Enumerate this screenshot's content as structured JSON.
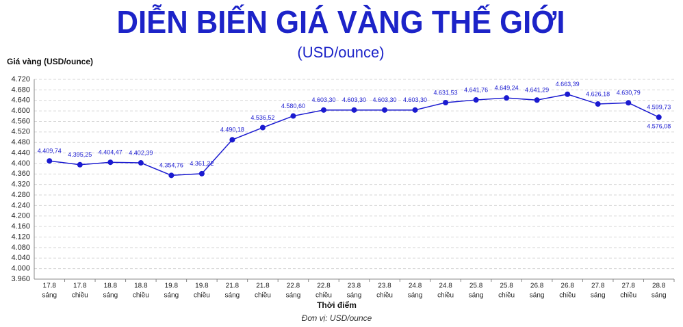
{
  "chart_data": {
    "type": "line",
    "title": "DIỄN BIẾN GIÁ VÀNG THẾ GIỚI",
    "subtitle": "(USD/ounce)",
    "y_label": "Giá vàng (USD/ounce)",
    "x_label": "Thời điểm",
    "note": "Đơn vị: USD/ounce",
    "categories": [
      [
        "17.8",
        "sáng"
      ],
      [
        "17.8",
        "chiều"
      ],
      [
        "18.8",
        "sáng"
      ],
      [
        "18.8",
        "chiều"
      ],
      [
        "19.8",
        "sáng"
      ],
      [
        "19.8",
        "chiều"
      ],
      [
        "21.8",
        "sáng"
      ],
      [
        "21.8",
        "chiều"
      ],
      [
        "22.8",
        "sáng"
      ],
      [
        "22.8",
        "chiều"
      ],
      [
        "23.8",
        "sáng"
      ],
      [
        "23.8",
        "chiều"
      ],
      [
        "24.8",
        "sáng"
      ],
      [
        "24.8",
        "chiều"
      ],
      [
        "25.8",
        "sáng"
      ],
      [
        "25.8",
        "chiều"
      ],
      [
        "26.8",
        "sáng"
      ],
      [
        "26.8",
        "chiều"
      ],
      [
        "27.8",
        "sáng"
      ],
      [
        "27.8",
        "chiều"
      ],
      [
        "28.8",
        "sáng"
      ]
    ],
    "values": [
      4409.74,
      4395.25,
      4404.47,
      4402.39,
      4354.76,
      4361.22,
      4490.18,
      4536.52,
      4580.6,
      4603.3,
      4603.3,
      4603.3,
      4603.3,
      4631.53,
      4641.76,
      4649.24,
      4641.29,
      4663.39,
      4626.18,
      4630.79,
      4576.08
    ],
    "value_labels": [
      "4.409,74",
      "4.395,25",
      "4.404,47",
      "4.402,39",
      "4.354,76",
      "4.361,22",
      "4.490,18",
      "4.536,52",
      "4.580,60",
      "4.603,30",
      "4.603,30",
      "4.603,30",
      "4.603,30",
      "4.631,53",
      "4.641,76",
      "4.649,24",
      "4.641,29",
      "4.663,39",
      "4.626,18",
      "4.630,79",
      "4.576,08"
    ],
    "annotation": "4.599,73",
    "color": "#1a1ad0",
    "ylim": [
      3960,
      4720
    ],
    "yticks": [
      {
        "value": 3960,
        "label": "3.960"
      },
      {
        "value": 4000,
        "label": "4.000"
      },
      {
        "value": 4040,
        "label": "4.040"
      },
      {
        "value": 4080,
        "label": "4.080"
      },
      {
        "value": 4120,
        "label": "4.120"
      },
      {
        "value": 4160,
        "label": "4.160"
      },
      {
        "value": 4200,
        "label": "4.200"
      },
      {
        "value": 4240,
        "label": "4.240"
      },
      {
        "value": 4280,
        "label": "4.280"
      },
      {
        "value": 4320,
        "label": "4.320"
      },
      {
        "value": 4360,
        "label": "4.360"
      },
      {
        "value": 4400,
        "label": "4.400"
      },
      {
        "value": 4440,
        "label": "4.440"
      },
      {
        "value": 4480,
        "label": "4.480"
      },
      {
        "value": 4520,
        "label": "4.520"
      },
      {
        "value": 4560,
        "label": "4.560"
      },
      {
        "value": 4600,
        "label": "4.600"
      },
      {
        "value": 4640,
        "label": "4.640"
      },
      {
        "value": 4680,
        "label": "4.680"
      },
      {
        "value": 4720,
        "label": "4.720"
      }
    ],
    "grid": true
  }
}
